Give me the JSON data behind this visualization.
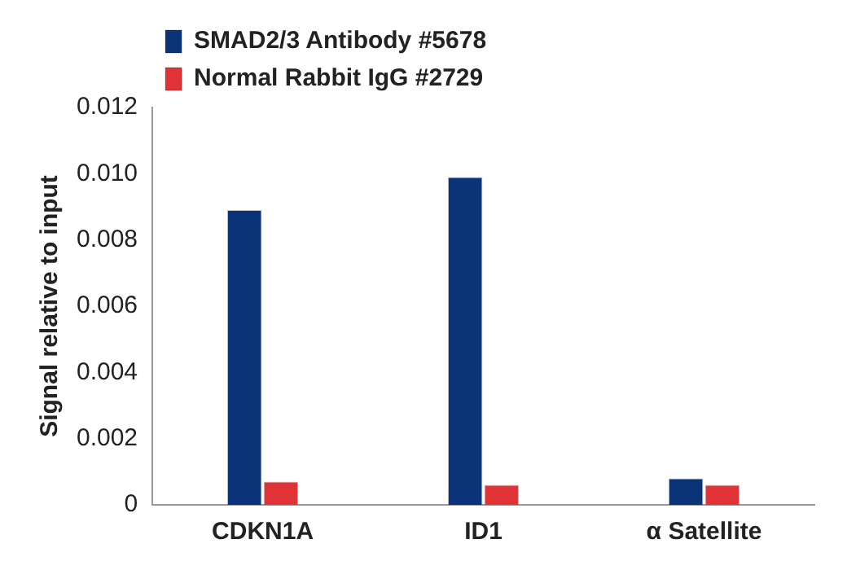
{
  "chart_data": {
    "type": "bar",
    "ylabel": "Signal relative to input",
    "categories": [
      "CDKN1A",
      "ID1",
      "α Satellite"
    ],
    "series": [
      {
        "name": "SMAD2/3 Antibody #5678",
        "color": "#0b3378",
        "values": [
          0.0089,
          0.0099,
          0.0008
        ]
      },
      {
        "name": "Normal Rabbit IgG #2729",
        "color": "#e03336",
        "values": [
          0.0007,
          0.0006,
          0.0006
        ]
      }
    ],
    "ylim": [
      0,
      0.012
    ],
    "yticks": [
      0,
      0.002,
      0.004,
      0.006,
      0.008,
      {
        "value": 0.01,
        "label": "0.010"
      },
      0.012
    ],
    "grid": false,
    "legend": "top left"
  }
}
